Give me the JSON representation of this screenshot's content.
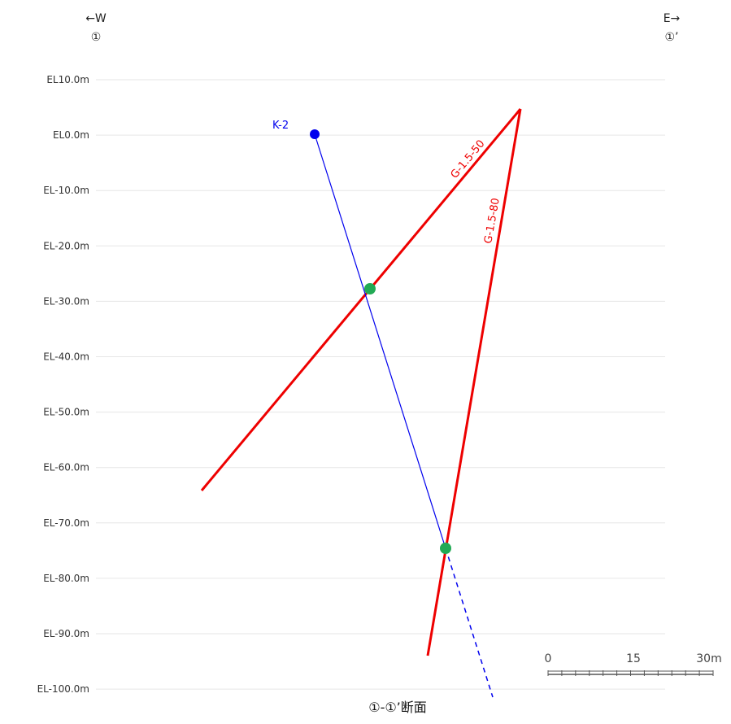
{
  "directions": {
    "west_arrow": "←W",
    "west_point": "①",
    "east_arrow": "E→",
    "east_point": "①’"
  },
  "title": "①-①’断面",
  "elevation_labels": [
    "EL10.0m",
    "EL0.0m",
    "EL-10.0m",
    "EL-20.0m",
    "EL-30.0m",
    "EL-40.0m",
    "EL-50.0m",
    "EL-60.0m",
    "EL-70.0m",
    "EL-80.0m",
    "EL-90.0m",
    "EL-100.0m"
  ],
  "elevations": [
    10,
    0,
    -10,
    -20,
    -30,
    -40,
    -50,
    -60,
    -70,
    -80,
    -90,
    -100
  ],
  "borehole": {
    "name": "K-2",
    "color": "#0000ee"
  },
  "boreholes": [
    {
      "name": "G-1.5-50",
      "color": "#ee0000"
    },
    {
      "name": "G-1.5-80",
      "color": "#ee0000"
    }
  ],
  "intersection_color": "#22aa55",
  "scale_bar": {
    "labels": [
      "0",
      "15",
      "30m"
    ]
  },
  "colors": {
    "grid": "#e6e6e6",
    "label": "#333333"
  }
}
